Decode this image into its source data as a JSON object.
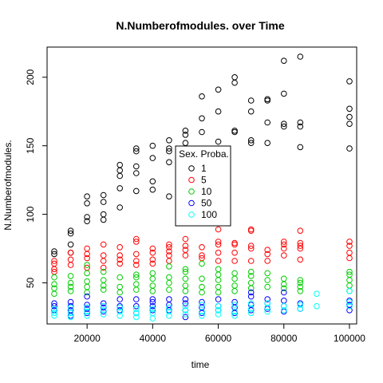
{
  "chart_data": {
    "type": "scatter",
    "title": "N.Numberofmodules. over Time",
    "xlabel": "time",
    "ylabel": "N.Numberofmodules.",
    "xlim": [
      7800,
      102200
    ],
    "ylim": [
      20,
      222
    ],
    "x_ticks": [
      20000,
      40000,
      60000,
      80000,
      100000
    ],
    "y_ticks": [
      50,
      100,
      150,
      200
    ],
    "marker": "open-circle",
    "legend": {
      "title": "Sex. Proba.",
      "placement": "center"
    },
    "series": [
      {
        "name": "1",
        "color": "#000000",
        "points": [
          [
            10000,
            71
          ],
          [
            10000,
            73
          ],
          [
            15000,
            72
          ],
          [
            15000,
            78
          ],
          [
            15000,
            86
          ],
          [
            15000,
            88
          ],
          [
            20000,
            95
          ],
          [
            20000,
            98
          ],
          [
            20000,
            108
          ],
          [
            20000,
            113
          ],
          [
            25000,
            96
          ],
          [
            25000,
            100
          ],
          [
            25000,
            109
          ],
          [
            25000,
            114
          ],
          [
            30000,
            105
          ],
          [
            30000,
            119
          ],
          [
            30000,
            128
          ],
          [
            30000,
            132
          ],
          [
            30000,
            136
          ],
          [
            35000,
            117
          ],
          [
            35000,
            130
          ],
          [
            35000,
            135
          ],
          [
            35000,
            146
          ],
          [
            35000,
            148
          ],
          [
            40000,
            118
          ],
          [
            40000,
            124
          ],
          [
            40000,
            141
          ],
          [
            40000,
            150
          ],
          [
            45000,
            113
          ],
          [
            45000,
            138
          ],
          [
            45000,
            146
          ],
          [
            45000,
            148
          ],
          [
            45000,
            154
          ],
          [
            50000,
            148
          ],
          [
            50000,
            152
          ],
          [
            50000,
            158
          ],
          [
            50000,
            161
          ],
          [
            55000,
            160
          ],
          [
            55000,
            170
          ],
          [
            55000,
            186
          ],
          [
            60000,
            148
          ],
          [
            60000,
            153
          ],
          [
            60000,
            175
          ],
          [
            60000,
            191
          ],
          [
            65000,
            160
          ],
          [
            65000,
            161
          ],
          [
            65000,
            196
          ],
          [
            65000,
            200
          ],
          [
            70000,
            152
          ],
          [
            70000,
            154
          ],
          [
            70000,
            175
          ],
          [
            70000,
            183
          ],
          [
            75000,
            152
          ],
          [
            75000,
            167
          ],
          [
            75000,
            183
          ],
          [
            75000,
            184
          ],
          [
            80000,
            164
          ],
          [
            80000,
            166
          ],
          [
            80000,
            188
          ],
          [
            80000,
            212
          ],
          [
            85000,
            149
          ],
          [
            85000,
            164
          ],
          [
            85000,
            167
          ],
          [
            85000,
            215
          ],
          [
            100000,
            148
          ],
          [
            100000,
            166
          ],
          [
            100000,
            171
          ],
          [
            100000,
            177
          ],
          [
            100000,
            197
          ]
        ]
      },
      {
        "name": "5",
        "color": "#ff0000",
        "points": [
          [
            10000,
            58
          ],
          [
            10000,
            60
          ],
          [
            10000,
            64
          ],
          [
            10000,
            66
          ],
          [
            15000,
            63
          ],
          [
            15000,
            67
          ],
          [
            15000,
            72
          ],
          [
            20000,
            61
          ],
          [
            20000,
            68
          ],
          [
            20000,
            71
          ],
          [
            20000,
            75
          ],
          [
            25000,
            61
          ],
          [
            25000,
            66
          ],
          [
            25000,
            70
          ],
          [
            25000,
            78
          ],
          [
            30000,
            64
          ],
          [
            30000,
            67
          ],
          [
            30000,
            70
          ],
          [
            30000,
            76
          ],
          [
            35000,
            63
          ],
          [
            35000,
            66
          ],
          [
            35000,
            71
          ],
          [
            35000,
            80
          ],
          [
            35000,
            82
          ],
          [
            40000,
            64
          ],
          [
            40000,
            67
          ],
          [
            40000,
            72
          ],
          [
            40000,
            75
          ],
          [
            45000,
            66
          ],
          [
            45000,
            70
          ],
          [
            45000,
            73
          ],
          [
            45000,
            76
          ],
          [
            45000,
            78
          ],
          [
            50000,
            70
          ],
          [
            50000,
            74
          ],
          [
            50000,
            77
          ],
          [
            50000,
            82
          ],
          [
            55000,
            68
          ],
          [
            55000,
            70
          ],
          [
            55000,
            76
          ],
          [
            60000,
            66
          ],
          [
            60000,
            72
          ],
          [
            60000,
            78
          ],
          [
            60000,
            80
          ],
          [
            60000,
            89
          ],
          [
            65000,
            66
          ],
          [
            65000,
            72
          ],
          [
            65000,
            78
          ],
          [
            65000,
            79
          ],
          [
            70000,
            66
          ],
          [
            70000,
            75
          ],
          [
            70000,
            77
          ],
          [
            70000,
            88
          ],
          [
            70000,
            89
          ],
          [
            75000,
            66
          ],
          [
            75000,
            71
          ],
          [
            75000,
            74
          ],
          [
            80000,
            70
          ],
          [
            80000,
            75
          ],
          [
            80000,
            78
          ],
          [
            80000,
            80
          ],
          [
            85000,
            67
          ],
          [
            85000,
            75
          ],
          [
            85000,
            77
          ],
          [
            85000,
            79
          ],
          [
            85000,
            88
          ],
          [
            100000,
            68
          ],
          [
            100000,
            72
          ],
          [
            100000,
            77
          ],
          [
            100000,
            80
          ]
        ]
      },
      {
        "name": "10",
        "color": "#00cd00",
        "points": [
          [
            10000,
            42
          ],
          [
            10000,
            46
          ],
          [
            10000,
            49
          ],
          [
            10000,
            54
          ],
          [
            15000,
            44
          ],
          [
            15000,
            47
          ],
          [
            15000,
            50
          ],
          [
            15000,
            55
          ],
          [
            20000,
            43
          ],
          [
            20000,
            47
          ],
          [
            20000,
            51
          ],
          [
            20000,
            57
          ],
          [
            20000,
            63
          ],
          [
            25000,
            45
          ],
          [
            25000,
            48
          ],
          [
            25000,
            52
          ],
          [
            25000,
            58
          ],
          [
            30000,
            43
          ],
          [
            30000,
            47
          ],
          [
            30000,
            54
          ],
          [
            35000,
            45
          ],
          [
            35000,
            49
          ],
          [
            35000,
            54
          ],
          [
            35000,
            56
          ],
          [
            40000,
            44
          ],
          [
            40000,
            48
          ],
          [
            40000,
            53
          ],
          [
            40000,
            57
          ],
          [
            45000,
            45
          ],
          [
            45000,
            50
          ],
          [
            45000,
            54
          ],
          [
            45000,
            62
          ],
          [
            50000,
            44
          ],
          [
            50000,
            48
          ],
          [
            50000,
            53
          ],
          [
            50000,
            58
          ],
          [
            50000,
            60
          ],
          [
            55000,
            43
          ],
          [
            55000,
            47
          ],
          [
            55000,
            53
          ],
          [
            55000,
            64
          ],
          [
            60000,
            43
          ],
          [
            60000,
            47
          ],
          [
            60000,
            52
          ],
          [
            60000,
            56
          ],
          [
            60000,
            60
          ],
          [
            65000,
            44
          ],
          [
            65000,
            48
          ],
          [
            65000,
            53
          ],
          [
            65000,
            57
          ],
          [
            70000,
            46
          ],
          [
            70000,
            50
          ],
          [
            70000,
            55
          ],
          [
            70000,
            58
          ],
          [
            75000,
            47
          ],
          [
            75000,
            52
          ],
          [
            75000,
            57
          ],
          [
            80000,
            46
          ],
          [
            80000,
            49
          ],
          [
            80000,
            53
          ],
          [
            85000,
            44
          ],
          [
            85000,
            47
          ],
          [
            85000,
            50
          ],
          [
            85000,
            52
          ],
          [
            100000,
            44
          ],
          [
            100000,
            48
          ],
          [
            100000,
            52
          ],
          [
            100000,
            56
          ],
          [
            100000,
            58
          ]
        ]
      },
      {
        "name": "50",
        "color": "#0000ff",
        "points": [
          [
            10000,
            30
          ],
          [
            10000,
            33
          ],
          [
            10000,
            35
          ],
          [
            15000,
            26
          ],
          [
            15000,
            30
          ],
          [
            15000,
            33
          ],
          [
            15000,
            36
          ],
          [
            20000,
            28
          ],
          [
            20000,
            31
          ],
          [
            20000,
            34
          ],
          [
            20000,
            40
          ],
          [
            25000,
            29
          ],
          [
            25000,
            32
          ],
          [
            25000,
            35
          ],
          [
            30000,
            30
          ],
          [
            30000,
            33
          ],
          [
            30000,
            38
          ],
          [
            35000,
            28
          ],
          [
            35000,
            33
          ],
          [
            35000,
            38
          ],
          [
            40000,
            30
          ],
          [
            40000,
            33
          ],
          [
            40000,
            36
          ],
          [
            40000,
            38
          ],
          [
            45000,
            30
          ],
          [
            45000,
            34
          ],
          [
            45000,
            38
          ],
          [
            50000,
            25
          ],
          [
            50000,
            30
          ],
          [
            50000,
            35
          ],
          [
            50000,
            38
          ],
          [
            55000,
            28
          ],
          [
            55000,
            32
          ],
          [
            55000,
            36
          ],
          [
            60000,
            30
          ],
          [
            60000,
            33
          ],
          [
            60000,
            38
          ],
          [
            65000,
            28
          ],
          [
            65000,
            32
          ],
          [
            65000,
            36
          ],
          [
            70000,
            30
          ],
          [
            70000,
            34
          ],
          [
            70000,
            40
          ],
          [
            70000,
            43
          ],
          [
            75000,
            31
          ],
          [
            75000,
            35
          ],
          [
            75000,
            38
          ],
          [
            80000,
            29
          ],
          [
            80000,
            33
          ],
          [
            80000,
            37
          ],
          [
            80000,
            43
          ],
          [
            85000,
            31
          ],
          [
            85000,
            35
          ],
          [
            100000,
            30
          ],
          [
            100000,
            34
          ],
          [
            100000,
            37
          ]
        ]
      },
      {
        "name": "100",
        "color": "#00ffff",
        "points": [
          [
            10000,
            26
          ],
          [
            10000,
            28
          ],
          [
            10000,
            31
          ],
          [
            15000,
            25
          ],
          [
            15000,
            28
          ],
          [
            15000,
            32
          ],
          [
            20000,
            26
          ],
          [
            20000,
            29
          ],
          [
            20000,
            32
          ],
          [
            25000,
            27
          ],
          [
            25000,
            30
          ],
          [
            25000,
            33
          ],
          [
            30000,
            26
          ],
          [
            30000,
            29
          ],
          [
            30000,
            32
          ],
          [
            35000,
            25
          ],
          [
            35000,
            28
          ],
          [
            35000,
            31
          ],
          [
            40000,
            24
          ],
          [
            40000,
            28
          ],
          [
            40000,
            31
          ],
          [
            45000,
            26
          ],
          [
            45000,
            29
          ],
          [
            45000,
            32
          ],
          [
            50000,
            27
          ],
          [
            50000,
            30
          ],
          [
            50000,
            33
          ],
          [
            55000,
            26
          ],
          [
            55000,
            29
          ],
          [
            55000,
            34
          ],
          [
            60000,
            27
          ],
          [
            60000,
            30
          ],
          [
            60000,
            33
          ],
          [
            65000,
            26
          ],
          [
            65000,
            29
          ],
          [
            65000,
            34
          ],
          [
            70000,
            28
          ],
          [
            70000,
            31
          ],
          [
            70000,
            35
          ],
          [
            75000,
            29
          ],
          [
            75000,
            32
          ],
          [
            75000,
            35
          ],
          [
            80000,
            30
          ],
          [
            80000,
            33
          ],
          [
            85000,
            31
          ],
          [
            85000,
            34
          ],
          [
            90000,
            33
          ],
          [
            90000,
            42
          ],
          [
            100000,
            33
          ],
          [
            100000,
            36
          ],
          [
            100000,
            44
          ]
        ]
      }
    ]
  }
}
